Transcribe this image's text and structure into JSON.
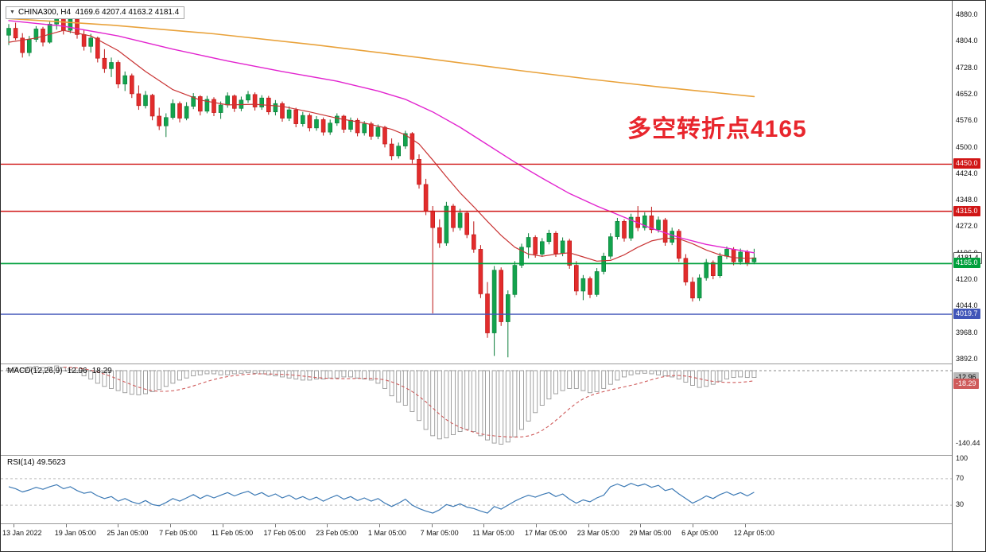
{
  "header": {
    "dropdown_icon": "▼",
    "symbol": "CHINA300, H4",
    "ohlc": "4169.6 4207.4 4163.2 4181.4"
  },
  "annotation": {
    "text": "多空转折点4165",
    "color": "#e8262d"
  },
  "panes": {
    "macd_label": "MACD(12,26,9) -12.96 -18.29",
    "rsi_label": "RSI(14) 49.5623"
  },
  "chart_data": {
    "type": "candlestick",
    "symbol": "CHINA300",
    "timeframe": "H4",
    "current_bar": {
      "open": 4169.6,
      "high": 4207.4,
      "low": 4163.2,
      "close": 4181.4
    },
    "price_range": [
      3892,
      4880
    ],
    "price_ticks": [
      "4880.0",
      "4804.0",
      "4728.0",
      "4652.0",
      "4576.0",
      "4500.0",
      "4424.0",
      "4348.0",
      "4272.0",
      "4196.0",
      "4120.0",
      "4044.0",
      "3968.0",
      "3892.0"
    ],
    "current_price_tag": {
      "label": "4181.4",
      "price": 4181.4
    },
    "hlines": [
      {
        "price": 4450.0,
        "label": "4450.0",
        "color": "#d01515"
      },
      {
        "price": 4315.0,
        "label": "4315.0",
        "color": "#d01515"
      },
      {
        "price": 4165.0,
        "label": "4165.0",
        "color": "#00a03c"
      },
      {
        "price": 4019.7,
        "label": "4019.7",
        "color": "#4055b8"
      }
    ],
    "colors": {
      "up": "#12a34d",
      "up_stroke": "#0a7d39",
      "down": "#e22c2c",
      "down_stroke": "#bb1414",
      "ma_slow": "#e9a23b",
      "ma_mid": "#e224cf",
      "ma_fast": "#c93434",
      "macd_bar": "#979797",
      "macd_signal": "#cf5b5b",
      "rsi_line": "#3d7ab5"
    },
    "candles": [
      [
        4820,
        4852,
        4792,
        4840
      ],
      [
        4840,
        4856,
        4806,
        4812
      ],
      [
        4812,
        4826,
        4756,
        4770
      ],
      [
        4770,
        4818,
        4760,
        4808
      ],
      [
        4808,
        4846,
        4800,
        4838
      ],
      [
        4838,
        4844,
        4788,
        4800
      ],
      [
        4800,
        4862,
        4796,
        4852
      ],
      [
        4852,
        4880,
        4836,
        4870
      ],
      [
        4870,
        4878,
        4822,
        4834
      ],
      [
        4834,
        4876,
        4826,
        4866
      ],
      [
        4866,
        4872,
        4810,
        4822
      ],
      [
        4822,
        4836,
        4776,
        4788
      ],
      [
        4788,
        4824,
        4770,
        4812
      ],
      [
        4812,
        4816,
        4742,
        4754
      ],
      [
        4754,
        4780,
        4712,
        4724
      ],
      [
        4724,
        4756,
        4700,
        4742
      ],
      [
        4742,
        4748,
        4668,
        4680
      ],
      [
        4680,
        4716,
        4660,
        4704
      ],
      [
        4704,
        4710,
        4640,
        4652
      ],
      [
        4652,
        4676,
        4606,
        4618
      ],
      [
        4618,
        4660,
        4610,
        4648
      ],
      [
        4648,
        4652,
        4576,
        4588
      ],
      [
        4588,
        4612,
        4548,
        4560
      ],
      [
        4560,
        4596,
        4528,
        4584
      ],
      [
        4584,
        4636,
        4578,
        4624
      ],
      [
        4624,
        4630,
        4570,
        4582
      ],
      [
        4582,
        4628,
        4576,
        4616
      ],
      [
        4616,
        4654,
        4608,
        4644
      ],
      [
        4644,
        4648,
        4590,
        4602
      ],
      [
        4602,
        4646,
        4596,
        4636
      ],
      [
        4636,
        4642,
        4588,
        4598
      ],
      [
        4598,
        4630,
        4580,
        4620
      ],
      [
        4620,
        4656,
        4612,
        4646
      ],
      [
        4646,
        4650,
        4600,
        4610
      ],
      [
        4610,
        4644,
        4602,
        4634
      ],
      [
        4634,
        4660,
        4626,
        4650
      ],
      [
        4650,
        4656,
        4604,
        4614
      ],
      [
        4614,
        4648,
        4606,
        4640
      ],
      [
        4640,
        4646,
        4592,
        4600
      ],
      [
        4600,
        4634,
        4590,
        4624
      ],
      [
        4624,
        4630,
        4572,
        4582
      ],
      [
        4582,
        4616,
        4574,
        4606
      ],
      [
        4606,
        4612,
        4556,
        4566
      ],
      [
        4566,
        4600,
        4558,
        4590
      ],
      [
        4590,
        4596,
        4544,
        4554
      ],
      [
        4554,
        4588,
        4546,
        4578
      ],
      [
        4578,
        4584,
        4532,
        4542
      ],
      [
        4542,
        4578,
        4534,
        4568
      ],
      [
        4568,
        4596,
        4560,
        4588
      ],
      [
        4588,
        4592,
        4540,
        4550
      ],
      [
        4550,
        4584,
        4542,
        4576
      ],
      [
        4576,
        4582,
        4530,
        4540
      ],
      [
        4540,
        4574,
        4532,
        4566
      ],
      [
        4566,
        4572,
        4520,
        4530
      ],
      [
        4530,
        4564,
        4522,
        4556
      ],
      [
        4556,
        4560,
        4498,
        4508
      ],
      [
        4508,
        4524,
        4462,
        4474
      ],
      [
        4474,
        4512,
        4466,
        4502
      ],
      [
        4502,
        4546,
        4494,
        4538
      ],
      [
        4538,
        4542,
        4452,
        4464
      ],
      [
        4464,
        4478,
        4380,
        4392
      ],
      [
        4392,
        4408,
        4304,
        4316
      ],
      [
        4316,
        4330,
        4022,
        4268
      ],
      [
        4268,
        4292,
        4210,
        4224
      ],
      [
        4224,
        4342,
        4216,
        4330
      ],
      [
        4330,
        4336,
        4256,
        4268
      ],
      [
        4268,
        4322,
        4260,
        4310
      ],
      [
        4310,
        4314,
        4238,
        4248
      ],
      [
        4248,
        4286,
        4196,
        4206
      ],
      [
        4206,
        4218,
        4066,
        4078
      ],
      [
        4078,
        4112,
        3952,
        3966
      ],
      [
        3966,
        4158,
        3900,
        4146
      ],
      [
        4146,
        4154,
        3986,
        3998
      ],
      [
        3998,
        4088,
        3896,
        4076
      ],
      [
        4076,
        4172,
        4068,
        4160
      ],
      [
        4160,
        4222,
        4152,
        4212
      ],
      [
        4212,
        4252,
        4180,
        4240
      ],
      [
        4240,
        4246,
        4182,
        4192
      ],
      [
        4192,
        4238,
        4184,
        4228
      ],
      [
        4228,
        4262,
        4220,
        4252
      ],
      [
        4252,
        4258,
        4184,
        4194
      ],
      [
        4194,
        4240,
        4186,
        4230
      ],
      [
        4230,
        4236,
        4150,
        4160
      ],
      [
        4160,
        4172,
        4074,
        4086
      ],
      [
        4086,
        4132,
        4060,
        4122
      ],
      [
        4122,
        4128,
        4066,
        4076
      ],
      [
        4076,
        4152,
        4070,
        4142
      ],
      [
        4142,
        4196,
        4134,
        4186
      ],
      [
        4186,
        4252,
        4178,
        4242
      ],
      [
        4242,
        4296,
        4234,
        4286
      ],
      [
        4286,
        4292,
        4228,
        4238
      ],
      [
        4238,
        4308,
        4230,
        4298
      ],
      [
        4298,
        4330,
        4258,
        4268
      ],
      [
        4268,
        4312,
        4260,
        4302
      ],
      [
        4302,
        4328,
        4252,
        4262
      ],
      [
        4262,
        4300,
        4254,
        4290
      ],
      [
        4290,
        4296,
        4216,
        4226
      ],
      [
        4226,
        4268,
        4218,
        4258
      ],
      [
        4258,
        4264,
        4170,
        4180
      ],
      [
        4180,
        4192,
        4102,
        4112
      ],
      [
        4112,
        4126,
        4056,
        4066
      ],
      [
        4066,
        4134,
        4058,
        4124
      ],
      [
        4124,
        4178,
        4116,
        4168
      ],
      [
        4168,
        4174,
        4120,
        4130
      ],
      [
        4130,
        4196,
        4124,
        4186
      ],
      [
        4186,
        4214,
        4178,
        4206
      ],
      [
        4206,
        4212,
        4160,
        4170
      ],
      [
        4170,
        4208,
        4162,
        4198
      ],
      [
        4198,
        4204,
        4158,
        4168
      ],
      [
        4169.6,
        4207.4,
        4163.2,
        4181.4
      ]
    ],
    "ma_lines": [
      {
        "name": "ma-slow",
        "colorKey": "ma_slow",
        "width": 1.6,
        "anchors": [
          [
            0,
            4868
          ],
          [
            15,
            4849
          ],
          [
            30,
            4824
          ],
          [
            45,
            4792
          ],
          [
            60,
            4756
          ],
          [
            75,
            4718
          ],
          [
            85,
            4694
          ],
          [
            95,
            4672
          ],
          [
            102,
            4658
          ],
          [
            109,
            4644
          ]
        ]
      },
      {
        "name": "ma-mid",
        "colorKey": "ma_mid",
        "width": 1.4,
        "anchors": [
          [
            0,
            4862
          ],
          [
            8,
            4846
          ],
          [
            16,
            4818
          ],
          [
            24,
            4780
          ],
          [
            32,
            4746
          ],
          [
            40,
            4716
          ],
          [
            48,
            4688
          ],
          [
            54,
            4660
          ],
          [
            58,
            4636
          ],
          [
            62,
            4600
          ],
          [
            66,
            4556
          ],
          [
            70,
            4506
          ],
          [
            74,
            4456
          ],
          [
            78,
            4410
          ],
          [
            82,
            4366
          ],
          [
            86,
            4330
          ],
          [
            90,
            4298
          ],
          [
            94,
            4266
          ],
          [
            98,
            4240
          ],
          [
            102,
            4220
          ],
          [
            106,
            4206
          ],
          [
            109,
            4196
          ]
        ]
      },
      {
        "name": "ma-fast",
        "colorKey": "ma_fast",
        "width": 1.2,
        "anchors": [
          [
            0,
            4800
          ],
          [
            4,
            4812
          ],
          [
            8,
            4834
          ],
          [
            12,
            4818
          ],
          [
            16,
            4776
          ],
          [
            20,
            4716
          ],
          [
            24,
            4664
          ],
          [
            28,
            4634
          ],
          [
            32,
            4620
          ],
          [
            36,
            4622
          ],
          [
            40,
            4616
          ],
          [
            44,
            4600
          ],
          [
            48,
            4582
          ],
          [
            52,
            4568
          ],
          [
            56,
            4550
          ],
          [
            58,
            4534
          ],
          [
            60,
            4508
          ],
          [
            62,
            4462
          ],
          [
            64,
            4414
          ],
          [
            66,
            4368
          ],
          [
            68,
            4328
          ],
          [
            70,
            4286
          ],
          [
            72,
            4246
          ],
          [
            74,
            4212
          ],
          [
            76,
            4192
          ],
          [
            78,
            4186
          ],
          [
            80,
            4192
          ],
          [
            82,
            4196
          ],
          [
            84,
            4184
          ],
          [
            86,
            4172
          ],
          [
            88,
            4174
          ],
          [
            90,
            4190
          ],
          [
            92,
            4212
          ],
          [
            94,
            4230
          ],
          [
            96,
            4238
          ],
          [
            98,
            4236
          ],
          [
            100,
            4222
          ],
          [
            102,
            4204
          ],
          [
            104,
            4190
          ],
          [
            106,
            4182
          ],
          [
            108,
            4180
          ],
          [
            109,
            4181
          ]
        ]
      }
    ],
    "macd": {
      "label": "MACD(12,26,9)",
      "current_macd": "-12.96",
      "current_signal": "-18.29",
      "min_label": "-140.44",
      "histogram": [
        4,
        6,
        5,
        7,
        8,
        6,
        7,
        9,
        6,
        2,
        -4,
        -10,
        -16,
        -24,
        -30,
        -34,
        -38,
        -42,
        -45,
        -46,
        -44,
        -40,
        -36,
        -30,
        -24,
        -18,
        -14,
        -10,
        -8,
        -6,
        -6,
        -8,
        -8,
        -6,
        -5,
        -4,
        -5,
        -6,
        -8,
        -10,
        -12,
        -14,
        -16,
        -18,
        -18,
        -16,
        -16,
        -14,
        -14,
        -12,
        -12,
        -14,
        -16,
        -18,
        -24,
        -34,
        -48,
        -60,
        -66,
        -78,
        -95,
        -112,
        -124,
        -130,
        -128,
        -122,
        -116,
        -112,
        -116,
        -124,
        -132,
        -138,
        -140,
        -136,
        -126,
        -112,
        -96,
        -80,
        -66,
        -54,
        -44,
        -38,
        -34,
        -34,
        -38,
        -42,
        -40,
        -34,
        -26,
        -18,
        -12,
        -8,
        -6,
        -5,
        -6,
        -8,
        -10,
        -12,
        -16,
        -22,
        -28,
        -32,
        -30,
        -26,
        -20,
        -16,
        -13,
        -12,
        -13,
        -12.96
      ]
    },
    "rsi": {
      "label": "RSI(14)",
      "current": "49.5623",
      "levels": [
        70,
        30
      ],
      "axis_labels": [
        "100",
        "70",
        "30"
      ],
      "series": [
        58,
        55,
        50,
        53,
        57,
        54,
        58,
        61,
        55,
        58,
        52,
        48,
        50,
        44,
        40,
        43,
        36,
        40,
        35,
        32,
        37,
        31,
        29,
        34,
        40,
        36,
        41,
        46,
        40,
        45,
        41,
        45,
        49,
        44,
        48,
        51,
        45,
        49,
        43,
        47,
        41,
        45,
        39,
        43,
        38,
        42,
        36,
        41,
        45,
        39,
        43,
        37,
        41,
        36,
        40,
        33,
        28,
        33,
        39,
        30,
        25,
        21,
        18,
        23,
        31,
        28,
        32,
        27,
        25,
        21,
        18,
        28,
        24,
        30,
        36,
        41,
        45,
        42,
        46,
        49,
        43,
        47,
        39,
        33,
        38,
        35,
        41,
        45,
        58,
        62,
        58,
        63,
        59,
        62,
        57,
        60,
        52,
        55,
        47,
        40,
        33,
        38,
        44,
        40,
        46,
        50,
        45,
        49,
        44,
        49.56
      ]
    },
    "time_labels": [
      "13 Jan 2022",
      "19 Jan 05:00",
      "25 Jan 05:00",
      "7 Feb 05:00",
      "11 Feb 05:00",
      "17 Feb 05:00",
      "23 Feb 05:00",
      "1 Mar 05:00",
      "7 Mar 05:00",
      "11 Mar 05:00",
      "17 Mar 05:00",
      "23 Mar 05:00",
      "29 Mar 05:00",
      "6 Apr 05:00",
      "12 Apr 05:00"
    ]
  }
}
